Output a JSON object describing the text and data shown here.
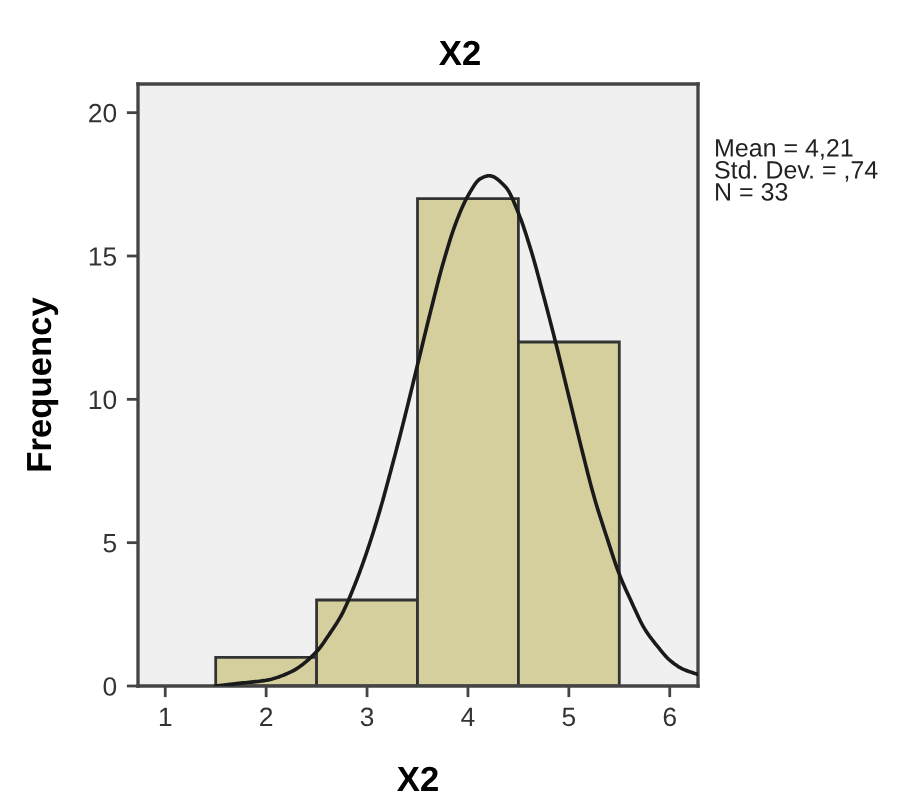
{
  "chart_data": {
    "type": "histogram",
    "title": "X2",
    "xlabel": "X2",
    "ylabel": "Frequency",
    "series": [
      {
        "bins": [
          1.5,
          2.5,
          3.5,
          4.5,
          5.5
        ],
        "values": [
          1,
          3,
          17,
          12
        ],
        "color": "#d4cf9c"
      },
      {
        "type": "line",
        "color": "#1a1a1a",
        "x": [
          1.5,
          1.75,
          2.0,
          2.25,
          2.5,
          2.625,
          2.75,
          2.875,
          3.0,
          3.125,
          3.25,
          3.375,
          3.5,
          3.625,
          3.75,
          3.875,
          4.0,
          4.125,
          4.21,
          4.375,
          4.5,
          4.625,
          4.75,
          4.875,
          5.0,
          5.125,
          5.25,
          5.375,
          5.5,
          5.625,
          5.75,
          5.875,
          6.0,
          6.125,
          6.28
        ],
        "values": [
          0.0,
          0.1,
          0.2,
          0.5,
          1.2,
          1.8,
          2.5,
          3.5,
          4.7,
          6.1,
          7.7,
          9.4,
          11.2,
          13.0,
          14.7,
          16.1,
          17.1,
          17.7,
          17.8,
          17.4,
          16.5,
          15.2,
          13.6,
          11.9,
          10.1,
          8.3,
          6.6,
          5.2,
          3.9,
          2.9,
          2.0,
          1.4,
          0.9,
          0.6,
          0.4
        ]
      }
    ],
    "xlim": [
      0.73,
      6.28
    ],
    "xticks": [
      1,
      2,
      3,
      4,
      5,
      6
    ],
    "ylim": [
      0,
      21
    ],
    "yticks": [
      0,
      5,
      10,
      15,
      20
    ],
    "grid": false,
    "annotations": [
      "Mean = 4,21",
      "Std. Dev. = ,74",
      "N = 33"
    ]
  }
}
